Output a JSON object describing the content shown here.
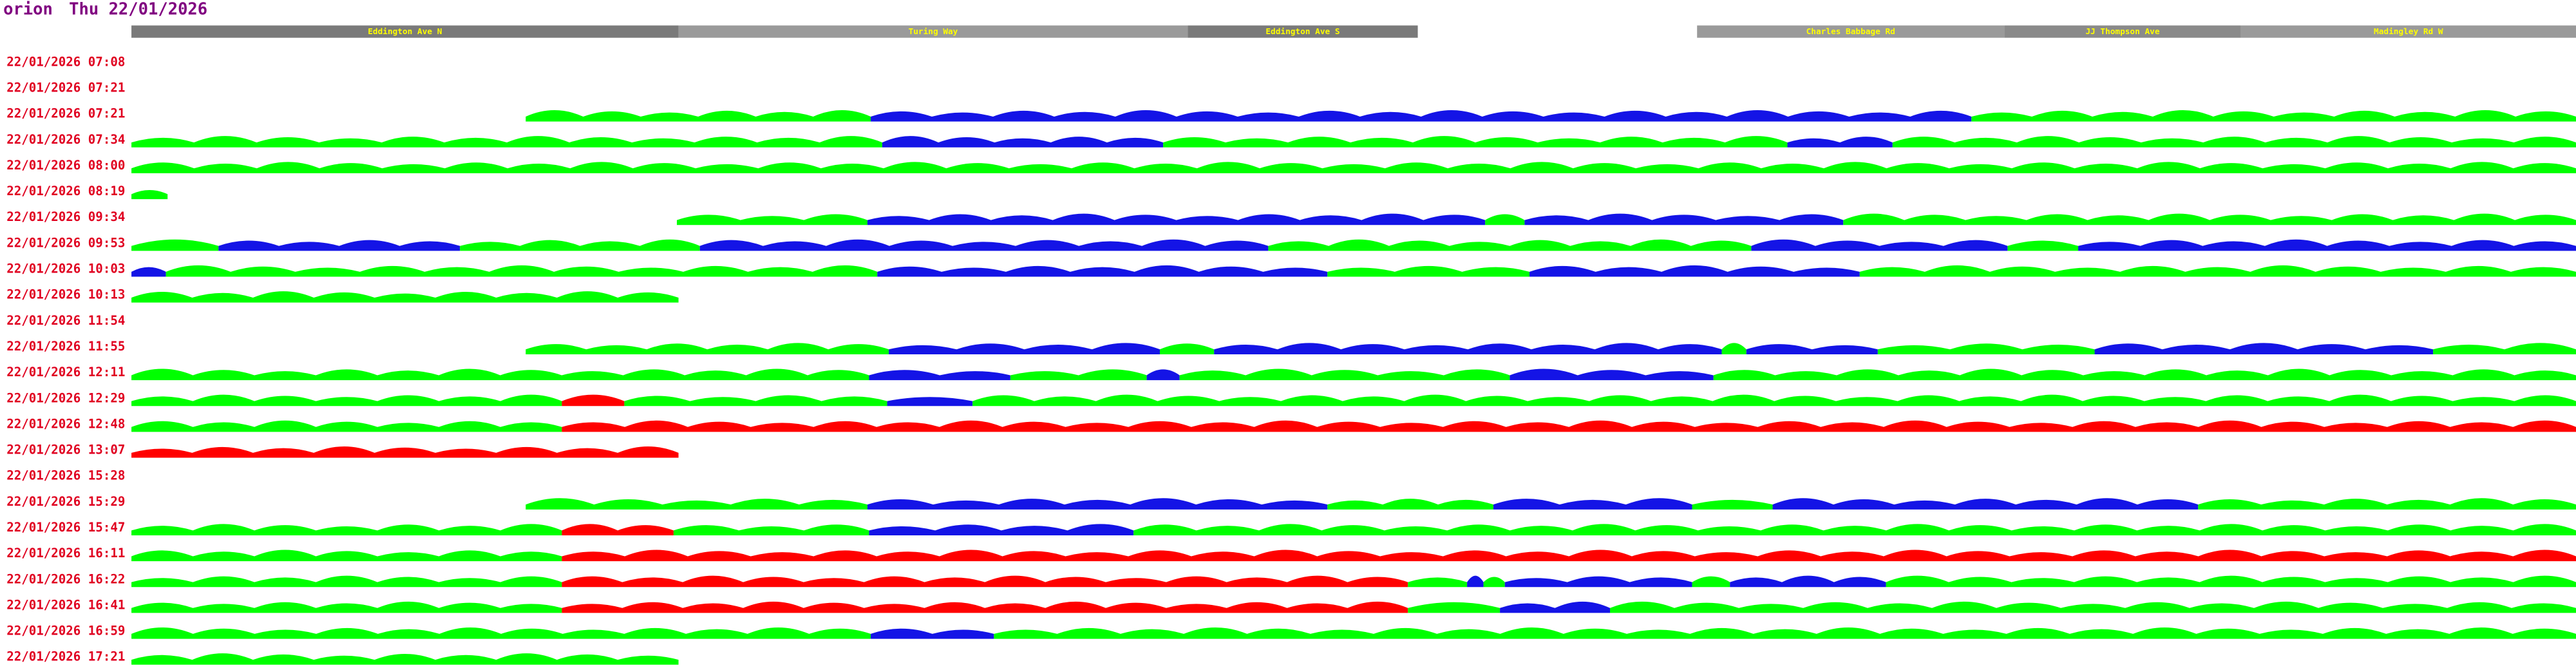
{
  "header": {
    "app": "orion",
    "date": "Thu 22/01/2026"
  },
  "roads": [
    "Eddington Ave N",
    "Turing Way",
    "Eddington Ave S",
    "Charles Babbage Rd",
    "JJ Thompson Ave",
    "Madingley Rd W"
  ],
  "rows": [
    "22/01/2026 07:08",
    "22/01/2026 07:21",
    "22/01/2026 07:21",
    "22/01/2026 07:34",
    "22/01/2026 08:00",
    "22/01/2026 08:19",
    "22/01/2026 09:34",
    "22/01/2026 09:53",
    "22/01/2026 10:03",
    "22/01/2026 10:13",
    "22/01/2026 11:54",
    "22/01/2026 11:55",
    "22/01/2026 12:11",
    "22/01/2026 12:29",
    "22/01/2026 12:48",
    "22/01/2026 13:07",
    "22/01/2026 15:28",
    "22/01/2026 15:29",
    "22/01/2026 15:47",
    "22/01/2026 16:11",
    "22/01/2026 16:22",
    "22/01/2026 16:41",
    "22/01/2026 16:59",
    "22/01/2026 17:21"
  ]
}
